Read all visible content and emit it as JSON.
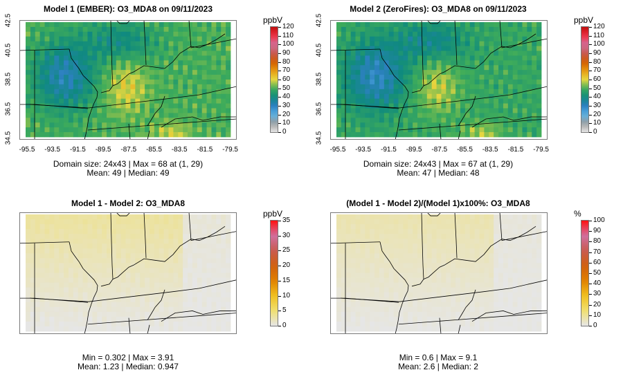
{
  "panels": [
    {
      "title": "Model 1 (EMBER): O3_MDA8 on 09/11/2023",
      "stats_line1": "Domain size: 24x43 | Max = 68 at (1, 29)",
      "stats_line2": "Mean: 49 |  Median: 49",
      "unit": "ppbV",
      "scale_ticks": [
        "120",
        "110",
        "100",
        "90",
        "80",
        "70",
        "60",
        "50",
        "40",
        "30",
        "20",
        "10",
        "0"
      ],
      "scale_max": 120,
      "kind": "conc",
      "seed": 1
    },
    {
      "title": "Model 2 (ZeroFires): O3_MDA8 on 09/11/2023",
      "stats_line1": "Domain size: 24x43 | Max = 67 at (1, 29)",
      "stats_line2": "Mean: 47 |  Median: 48",
      "unit": "ppbV",
      "scale_ticks": [
        "120",
        "110",
        "100",
        "90",
        "80",
        "70",
        "60",
        "50",
        "40",
        "30",
        "20",
        "10",
        "0"
      ],
      "scale_max": 120,
      "kind": "conc",
      "seed": 2
    },
    {
      "title": "Model 1 - Model 2: O3_MDA8",
      "stats_line1": "Min = 0.302 | Max = 3.91",
      "stats_line2": "Mean: 1.23 |  Median: 0.947",
      "unit": "ppbV",
      "scale_ticks": [
        "35",
        "30",
        "25",
        "20",
        "15",
        "10",
        "5",
        "0"
      ],
      "scale_max": 35,
      "kind": "diff",
      "seed": 3
    },
    {
      "title": "(Model 1 - Model 2)/(Model 1)x100%: O3_MDA8",
      "stats_line1": "Min = 0.6 | Max = 9.1",
      "stats_line2": "Mean: 2.6 |  Median: 2",
      "unit": "%",
      "scale_ticks": [
        "100",
        "90",
        "80",
        "70",
        "60",
        "50",
        "40",
        "30",
        "20",
        "10",
        "0"
      ],
      "scale_max": 100,
      "kind": "pct",
      "seed": 4
    }
  ],
  "lat_ticks": [
    "42.5",
    "40.5",
    "38.5",
    "36.5",
    "34.5"
  ],
  "lon_ticks": [
    "-95.5",
    "-93.5",
    "-91.5",
    "-89.5",
    "-87.5",
    "-85.5",
    "-83.5",
    "-81.5",
    "-79.5"
  ],
  "colors": {
    "ramp": [
      "#e6e6e6",
      "#9a9a9a",
      "#5ab4e6",
      "#2c80c0",
      "#0f8a7e",
      "#3fac5a",
      "#e6d640",
      "#e89a10",
      "#d05a00",
      "#c85a50",
      "#d070a0",
      "#f03040",
      "#c01010"
    ],
    "diff_ramp": [
      "#e6e6e6",
      "#f0e070",
      "#f0c020",
      "#e08000",
      "#d06010",
      "#c85a50",
      "#d070a0",
      "#ff1010"
    ]
  }
}
